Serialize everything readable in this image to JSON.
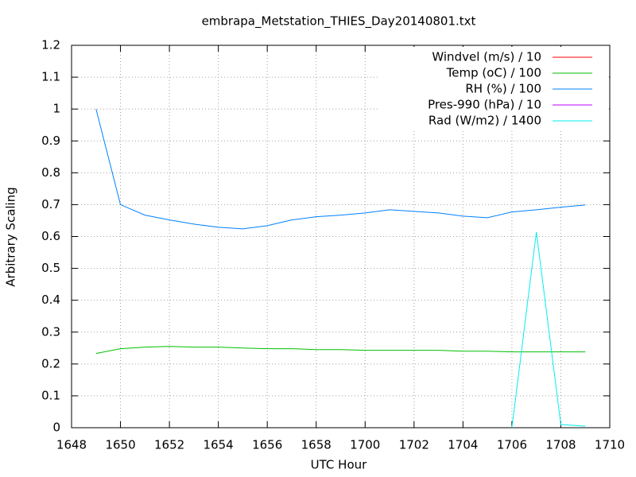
{
  "chart_data": {
    "type": "line",
    "title": "embrapa_Metstation_THIES_Day20140801.txt",
    "x_label": "UTC Hour",
    "y_label": "Arbitrary Scaling",
    "x": [
      1009,
      1010,
      1011,
      1012,
      1013,
      1014,
      1015,
      1016,
      1017,
      1018,
      1019,
      1020,
      1021,
      1022,
      1023,
      1024,
      1025,
      1026,
      1027,
      1028,
      1029
    ],
    "xlim": [
      1008,
      1030
    ],
    "xticks": [
      {
        "value": 1008,
        "label": "1648"
      },
      {
        "value": 1010,
        "label": "1650"
      },
      {
        "value": 1012,
        "label": "1652"
      },
      {
        "value": 1014,
        "label": "1654"
      },
      {
        "value": 1016,
        "label": "1656"
      },
      {
        "value": 1018,
        "label": "1658"
      },
      {
        "value": 1020,
        "label": "1700"
      },
      {
        "value": 1022,
        "label": "1702"
      },
      {
        "value": 1024,
        "label": "1704"
      },
      {
        "value": 1026,
        "label": "1706"
      },
      {
        "value": 1028,
        "label": "1708"
      },
      {
        "value": 1030,
        "label": "1710"
      }
    ],
    "ylim": [
      0,
      1.2
    ],
    "yticks": [
      0,
      0.1,
      0.2,
      0.3,
      0.4,
      0.5,
      0.6,
      0.7,
      0.8,
      0.9,
      1,
      1.1,
      1.2
    ],
    "grid": true,
    "legend": "top-right",
    "series": [
      {
        "name": "Windvel (m/s) / 10",
        "color": "#ff0000",
        "values": [
          null,
          null,
          null,
          null,
          null,
          null,
          null,
          null,
          null,
          null,
          null,
          null,
          null,
          null,
          null,
          null,
          null,
          null,
          null,
          null,
          null
        ]
      },
      {
        "name": "Temp (oC) / 100",
        "color": "#00c000",
        "values": [
          0.233,
          0.248,
          0.253,
          0.255,
          0.253,
          0.253,
          0.25,
          0.248,
          0.248,
          0.245,
          0.245,
          0.243,
          0.243,
          0.243,
          0.243,
          0.24,
          0.24,
          0.238,
          0.238,
          0.238,
          0.238
        ]
      },
      {
        "name": "RH (%) / 100",
        "color": "#0080ff",
        "values": [
          1.0,
          0.7,
          0.667,
          0.652,
          0.639,
          0.629,
          0.624,
          0.634,
          0.652,
          0.662,
          0.667,
          0.674,
          0.684,
          0.679,
          0.674,
          0.664,
          0.659,
          0.677,
          0.684,
          0.692,
          0.699
        ]
      },
      {
        "name": "Pres-990 (hPa) / 10",
        "color": "#c000ff",
        "values": [
          null,
          null,
          null,
          null,
          null,
          null,
          null,
          null,
          null,
          null,
          null,
          null,
          null,
          null,
          null,
          null,
          null,
          null,
          null,
          null,
          null
        ]
      },
      {
        "name": "Rad (W/m2) / 1400",
        "color": "#00eeee",
        "values": [
          null,
          null,
          null,
          null,
          null,
          null,
          null,
          null,
          null,
          null,
          null,
          null,
          null,
          null,
          null,
          null,
          null,
          0,
          0.614,
          0.01,
          0.005
        ]
      }
    ]
  }
}
